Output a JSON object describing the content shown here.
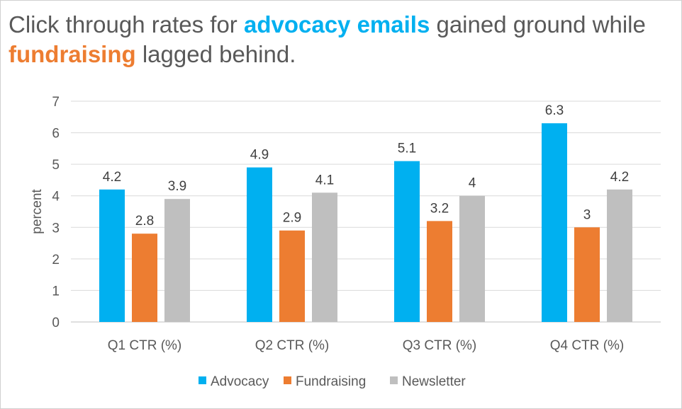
{
  "title": {
    "part1": "Click through rates for ",
    "highlight1": "advocacy emails",
    "part2": " gained ground while ",
    "highlight2": "fundraising",
    "part3": " lagged behind."
  },
  "chart_data": {
    "type": "bar",
    "categories": [
      "Q1 CTR (%)",
      "Q2 CTR (%)",
      "Q3 CTR (%)",
      "Q4 CTR (%)"
    ],
    "series": [
      {
        "name": "Advocacy",
        "color": "#00B0F0",
        "values": [
          4.2,
          4.9,
          5.1,
          6.3
        ]
      },
      {
        "name": "Fundraising",
        "color": "#ED7D31",
        "values": [
          2.8,
          2.9,
          3.2,
          3
        ]
      },
      {
        "name": "Newsletter",
        "color": "#BFBFBF",
        "values": [
          3.9,
          4.1,
          4,
          4.2
        ]
      }
    ],
    "xlabel": "",
    "ylabel": "percent",
    "ylim": [
      0,
      7
    ],
    "yticks": [
      0,
      1,
      2,
      3,
      4,
      5,
      6,
      7
    ],
    "grid": true,
    "legend": "bottom"
  }
}
